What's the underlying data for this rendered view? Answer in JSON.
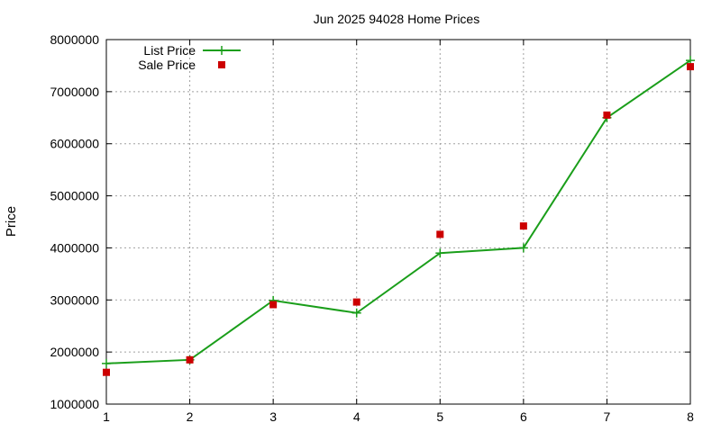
{
  "chart_data": {
    "type": "line",
    "title": "Jun 2025 94028 Home Prices",
    "xlabel": "",
    "ylabel": "Price",
    "x": [
      1,
      2,
      3,
      4,
      5,
      6,
      7,
      8
    ],
    "xlim": [
      1,
      8
    ],
    "ylim": [
      1000000,
      8000000
    ],
    "yticks": [
      "1000000",
      "2000000",
      "3000000",
      "4000000",
      "5000000",
      "6000000",
      "7000000",
      "8000000"
    ],
    "xticks": [
      "1",
      "2",
      "3",
      "4",
      "5",
      "6",
      "7",
      "8"
    ],
    "grid": true,
    "legend_position": "top-left",
    "series": [
      {
        "name": "List Price",
        "style": "line-with-plus-markers",
        "color": "#1a9e1a",
        "values": [
          1780000,
          1850000,
          2990000,
          2750000,
          3900000,
          4000000,
          6500000,
          7600000
        ]
      },
      {
        "name": "Sale Price",
        "style": "square-points",
        "color": "#cc0000",
        "values": [
          1610000,
          1850000,
          2910000,
          2960000,
          4260000,
          4420000,
          6550000,
          7480000
        ]
      }
    ]
  }
}
